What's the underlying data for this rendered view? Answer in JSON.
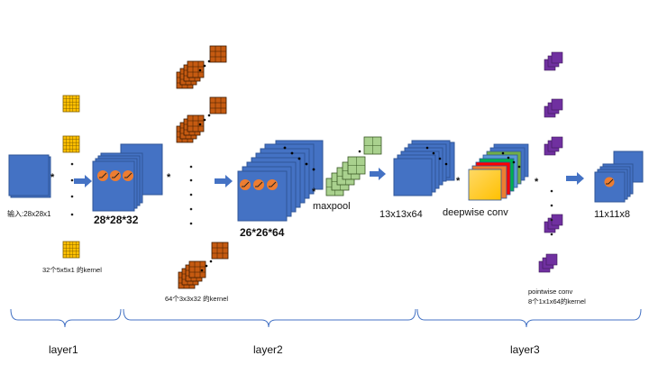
{
  "labels": {
    "input": "输入:28x28x1",
    "kernel1": "32个5x5x1 的kernel",
    "out1": "28*28*32",
    "kernel2": "64个3x3x32 的kernel",
    "out2": "26*26*64",
    "maxpool": "maxpool",
    "out3": "13x13x64",
    "depthwise": "deepwise conv",
    "pointwise1": "pointwise conv",
    "pointwise2": "8个1x1x64的kernel",
    "out4": "11x11x8",
    "layer1": "layer1",
    "layer2": "layer2",
    "layer3": "layer3",
    "star": "*"
  },
  "colors": {
    "blue_block": "#4472c4",
    "blue_edge": "#2f5597",
    "yellow_kernel": "#ffc000",
    "orange_kernel": "#c55a11",
    "green_kernel": "#a9d18e",
    "purple_kernel": "#7030a0",
    "activation": "#ed7d31",
    "arrow": "#4472c4",
    "bracket": "#4472c4"
  },
  "icons": {
    "activation": "relu-curve-icon",
    "arrow": "right-arrow-icon"
  }
}
